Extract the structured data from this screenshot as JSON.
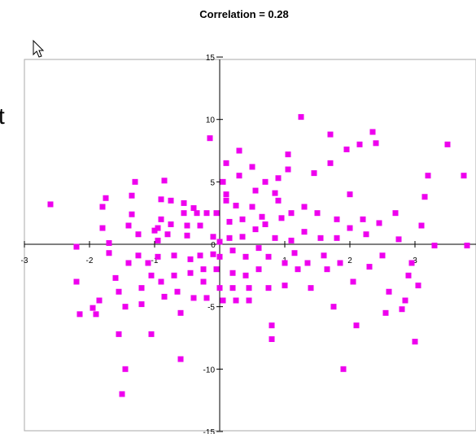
{
  "page": {
    "fragment_text": "t"
  },
  "chart_data": {
    "type": "scatter",
    "title": "Correlation = 0.28",
    "xlabel": "",
    "ylabel": "",
    "xlim": [
      -3,
      4
    ],
    "ylim": [
      -15,
      15
    ],
    "x_ticks": [
      -3,
      -2,
      -1,
      0,
      1,
      2,
      3
    ],
    "y_ticks": [
      -15,
      -10,
      -5,
      0,
      5,
      10,
      15
    ],
    "grid": false,
    "legend": "none",
    "marker_color": "#EE00EE",
    "points": [
      [
        -2.6,
        3.2
      ],
      [
        -2.2,
        -0.2
      ],
      [
        -2.2,
        -3.0
      ],
      [
        -2.15,
        -5.6
      ],
      [
        -1.95,
        -5.1
      ],
      [
        -1.9,
        -5.6
      ],
      [
        -1.85,
        -4.5
      ],
      [
        -1.8,
        1.3
      ],
      [
        -1.8,
        3.0
      ],
      [
        -1.75,
        3.7
      ],
      [
        -1.7,
        0.1
      ],
      [
        -1.7,
        -0.7
      ],
      [
        -1.6,
        -2.7
      ],
      [
        -1.55,
        -3.8
      ],
      [
        -1.55,
        -7.2
      ],
      [
        -1.5,
        -12.0
      ],
      [
        -1.45,
        -10.0
      ],
      [
        -1.45,
        -5.0
      ],
      [
        -1.4,
        1.5
      ],
      [
        -1.4,
        -1.5
      ],
      [
        -1.35,
        2.4
      ],
      [
        -1.35,
        3.9
      ],
      [
        -1.3,
        5.0
      ],
      [
        -1.25,
        0.8
      ],
      [
        -1.25,
        -0.9
      ],
      [
        -1.2,
        -3.5
      ],
      [
        -1.2,
        -4.8
      ],
      [
        -1.1,
        -1.5
      ],
      [
        -1.05,
        -2.5
      ],
      [
        -1.05,
        -7.2
      ],
      [
        -1.0,
        1.1
      ],
      [
        -0.95,
        1.3
      ],
      [
        -0.95,
        0.3
      ],
      [
        -0.95,
        -1.0
      ],
      [
        -0.9,
        3.6
      ],
      [
        -0.9,
        2.0
      ],
      [
        -0.9,
        -3.0
      ],
      [
        -0.85,
        -4.2
      ],
      [
        -0.85,
        5.1
      ],
      [
        -0.8,
        0.8
      ],
      [
        -0.75,
        3.5
      ],
      [
        -0.75,
        1.6
      ],
      [
        -0.7,
        -0.9
      ],
      [
        -0.7,
        -2.5
      ],
      [
        -0.65,
        -3.8
      ],
      [
        -0.6,
        -5.5
      ],
      [
        -0.6,
        -9.2
      ],
      [
        -0.55,
        3.3
      ],
      [
        -0.55,
        2.5
      ],
      [
        -0.5,
        1.5
      ],
      [
        -0.5,
        0.7
      ],
      [
        -0.45,
        -1.2
      ],
      [
        -0.45,
        -2.3
      ],
      [
        -0.4,
        -4.3
      ],
      [
        -0.4,
        2.9
      ],
      [
        -0.35,
        2.5
      ],
      [
        -0.3,
        1.5
      ],
      [
        -0.3,
        -0.9
      ],
      [
        -0.25,
        -2.0
      ],
      [
        -0.25,
        -3.0
      ],
      [
        -0.2,
        -4.3
      ],
      [
        -0.2,
        2.5
      ],
      [
        -0.15,
        8.5
      ],
      [
        -0.1,
        0.6
      ],
      [
        -0.1,
        -0.8
      ],
      [
        -0.05,
        -2.0
      ],
      [
        -0.05,
        2.5
      ],
      [
        0.0,
        0.2
      ],
      [
        0.0,
        -1.0
      ],
      [
        0.0,
        -3.5
      ],
      [
        0.05,
        -4.5
      ],
      [
        0.05,
        5.0
      ],
      [
        0.1,
        6.5
      ],
      [
        0.1,
        4.0
      ],
      [
        0.1,
        3.5
      ],
      [
        0.15,
        1.8
      ],
      [
        0.15,
        0.5
      ],
      [
        0.2,
        -0.5
      ],
      [
        0.2,
        -2.3
      ],
      [
        0.2,
        -3.5
      ],
      [
        0.25,
        -4.5
      ],
      [
        0.25,
        3.1
      ],
      [
        0.3,
        7.5
      ],
      [
        0.3,
        5.5
      ],
      [
        0.35,
        2.0
      ],
      [
        0.35,
        0.6
      ],
      [
        0.4,
        -1.0
      ],
      [
        0.4,
        -2.5
      ],
      [
        0.45,
        -3.5
      ],
      [
        0.45,
        -4.5
      ],
      [
        0.5,
        3.0
      ],
      [
        0.5,
        6.2
      ],
      [
        0.55,
        4.3
      ],
      [
        0.55,
        1.2
      ],
      [
        0.6,
        -0.3
      ],
      [
        0.6,
        -2.0
      ],
      [
        0.65,
        2.2
      ],
      [
        0.7,
        5.0
      ],
      [
        0.7,
        1.6
      ],
      [
        0.75,
        -1.0
      ],
      [
        0.75,
        -3.5
      ],
      [
        0.8,
        -6.5
      ],
      [
        0.8,
        -7.6
      ],
      [
        0.85,
        0.5
      ],
      [
        0.85,
        4.1
      ],
      [
        0.9,
        3.5
      ],
      [
        0.9,
        5.3
      ],
      [
        0.95,
        2.1
      ],
      [
        1.0,
        -1.5
      ],
      [
        1.0,
        -3.3
      ],
      [
        1.05,
        6.0
      ],
      [
        1.05,
        7.2
      ],
      [
        1.1,
        2.5
      ],
      [
        1.1,
        0.3
      ],
      [
        1.15,
        -0.7
      ],
      [
        1.2,
        -2.0
      ],
      [
        1.25,
        10.2
      ],
      [
        1.3,
        3.0
      ],
      [
        1.3,
        1.0
      ],
      [
        1.35,
        -1.5
      ],
      [
        1.4,
        -3.5
      ],
      [
        1.45,
        5.7
      ],
      [
        1.5,
        2.5
      ],
      [
        1.55,
        0.5
      ],
      [
        1.6,
        -0.9
      ],
      [
        1.65,
        -2.0
      ],
      [
        1.7,
        6.5
      ],
      [
        1.7,
        8.8
      ],
      [
        1.75,
        -5.0
      ],
      [
        1.8,
        2.0
      ],
      [
        1.8,
        0.5
      ],
      [
        1.85,
        -1.5
      ],
      [
        1.9,
        -10.0
      ],
      [
        1.95,
        7.6
      ],
      [
        2.0,
        4.0
      ],
      [
        2.0,
        1.3
      ],
      [
        2.05,
        -3.0
      ],
      [
        2.1,
        -6.5
      ],
      [
        2.15,
        8.0
      ],
      [
        2.2,
        2.0
      ],
      [
        2.25,
        0.8
      ],
      [
        2.3,
        -1.8
      ],
      [
        2.35,
        9.0
      ],
      [
        2.4,
        8.1
      ],
      [
        2.45,
        1.7
      ],
      [
        2.5,
        -0.9
      ],
      [
        2.55,
        -5.5
      ],
      [
        2.6,
        -3.8
      ],
      [
        2.7,
        2.5
      ],
      [
        2.75,
        0.4
      ],
      [
        2.8,
        -5.2
      ],
      [
        2.85,
        -4.5
      ],
      [
        2.9,
        -2.5
      ],
      [
        2.95,
        -1.5
      ],
      [
        3.0,
        -7.8
      ],
      [
        3.05,
        -3.3
      ],
      [
        3.1,
        1.5
      ],
      [
        3.15,
        3.8
      ],
      [
        3.2,
        5.5
      ],
      [
        3.3,
        -0.1
      ],
      [
        3.5,
        8.0
      ],
      [
        3.75,
        5.5
      ],
      [
        3.8,
        -0.1
      ],
      [
        4.25,
        7.9
      ]
    ]
  }
}
